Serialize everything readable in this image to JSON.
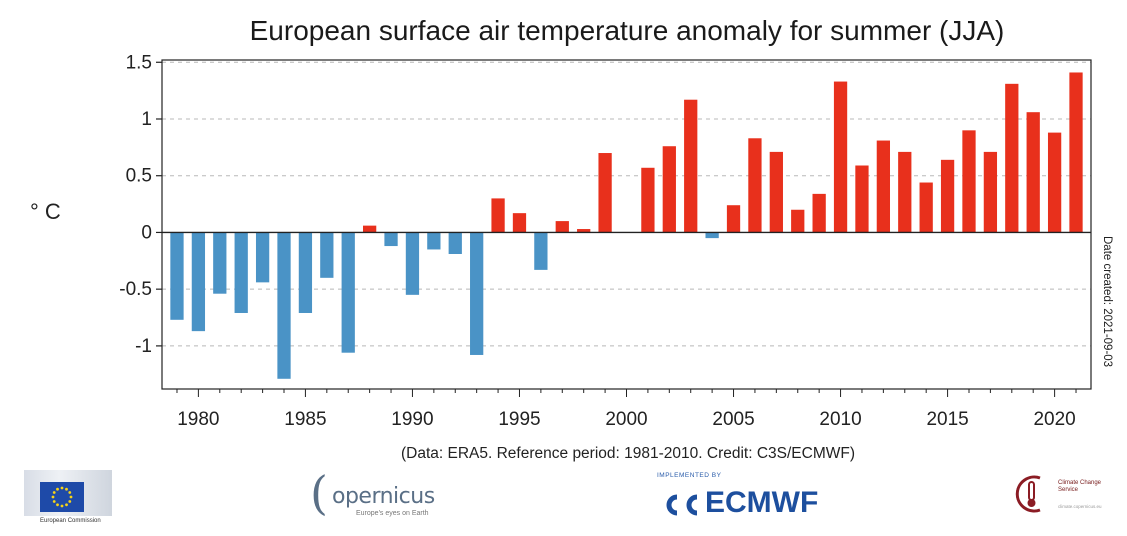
{
  "chart_data": {
    "type": "bar",
    "title": "European surface air temperature anomaly for summer (JJA)",
    "ylabel": "° C",
    "credit": "(Data: ERA5.  Reference period: 1981-2010.  Credit: C3S/ECMWF)",
    "date_created": "Date created: 2021-09-03",
    "ylim": [
      -1.38,
      1.52
    ],
    "yticks": [
      -1,
      -0.5,
      0,
      0.5,
      1,
      1.5
    ],
    "ytick_labels": [
      "-1",
      "-0.5",
      "0",
      "0.5",
      "1",
      "1.5"
    ],
    "xlim": [
      1978.3,
      2021.7
    ],
    "xticks": [
      1980,
      1985,
      1990,
      1995,
      2000,
      2005,
      2010,
      2015,
      2020
    ],
    "xtick_labels": [
      "1980",
      "1985",
      "1990",
      "1995",
      "2000",
      "2005",
      "2010",
      "2015",
      "2020"
    ],
    "grid": true,
    "colors": {
      "positive": "#e8301c",
      "negative": "#4a93c6"
    },
    "years": [
      1979,
      1980,
      1981,
      1982,
      1983,
      1984,
      1985,
      1986,
      1987,
      1988,
      1989,
      1990,
      1991,
      1992,
      1993,
      1994,
      1995,
      1996,
      1997,
      1998,
      1999,
      2000,
      2001,
      2002,
      2003,
      2004,
      2005,
      2006,
      2007,
      2008,
      2009,
      2010,
      2011,
      2012,
      2013,
      2014,
      2015,
      2016,
      2017,
      2018,
      2019,
      2020,
      2021
    ],
    "values": [
      -0.77,
      -0.87,
      -0.54,
      -0.71,
      -0.44,
      -1.29,
      -0.71,
      -0.4,
      -1.06,
      0.06,
      -0.12,
      -0.55,
      -0.15,
      -0.19,
      -1.08,
      0.3,
      0.17,
      -0.33,
      0.1,
      0.03,
      0.7,
      0.0,
      0.57,
      0.76,
      1.17,
      -0.05,
      0.24,
      0.83,
      0.71,
      0.2,
      0.34,
      1.33,
      0.59,
      0.81,
      0.71,
      0.44,
      0.64,
      0.9,
      0.71,
      1.31,
      1.06,
      0.88,
      1.41
    ]
  },
  "logos": {
    "eu": {
      "caption": "European Commission"
    },
    "copernicus": {
      "name": "opernicus",
      "tagline": "Europe's eyes on Earth"
    },
    "ecmwf": {
      "small": "IMPLEMENTED BY",
      "name": "ECMWF"
    },
    "c3s": {
      "name": "Climate Change Service",
      "sub": "climate.copernicus.eu"
    }
  }
}
